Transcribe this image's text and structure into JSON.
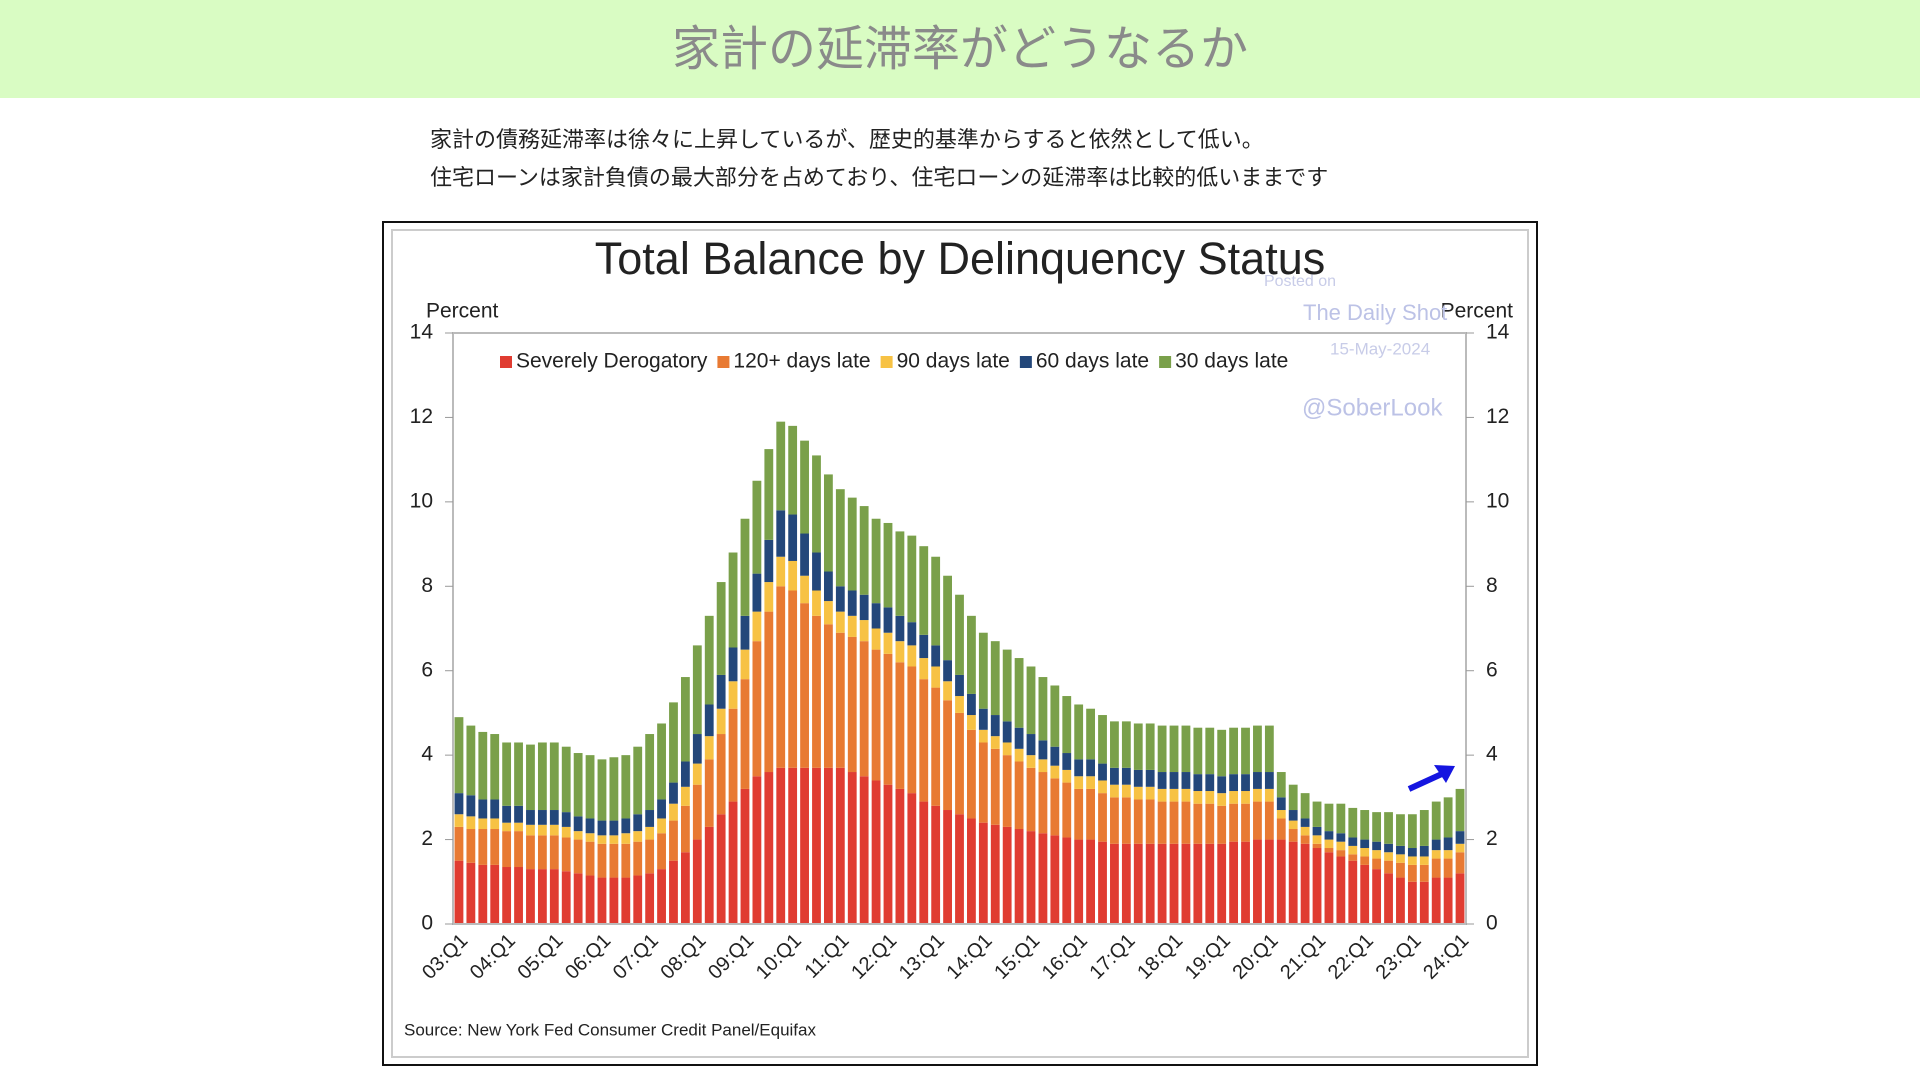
{
  "header": {
    "title": "家計の延滞率がどうなるか"
  },
  "description": [
    "家計の債務延滞率は徐々に上昇しているが、歴史的基準からすると依然として低い。",
    "住宅ローンは家計負債の最大部分を占めており、住宅ローンの延滞率は比較的低いままです"
  ],
  "chart_data": {
    "type": "stacked_bar",
    "title": "Total Balance by Delinquency Status",
    "y_label": "Percent",
    "y2_label": "Percent",
    "source": "Source: New York Fed Consumer Credit Panel/Equifax",
    "watermark": [
      "Posted on",
      "The Daily Shot",
      "15-May-2024",
      "@SoberLook"
    ],
    "legend": "top",
    "ylim": [
      0,
      14
    ],
    "yticks": [
      0,
      2,
      4,
      6,
      8,
      10,
      12,
      14
    ],
    "y2lim": [
      0,
      14
    ],
    "y2ticks": [
      0,
      2,
      4,
      6,
      8,
      10,
      12,
      14
    ],
    "categories": [
      "03:Q1",
      null,
      null,
      null,
      "04:Q1",
      null,
      null,
      null,
      "05:Q1",
      null,
      null,
      null,
      "06:Q1",
      null,
      null,
      null,
      "07:Q1",
      null,
      null,
      null,
      "08:Q1",
      null,
      null,
      null,
      "09:Q1",
      null,
      null,
      null,
      "10:Q1",
      null,
      null,
      null,
      "11:Q1",
      null,
      null,
      null,
      "12:Q1",
      null,
      null,
      null,
      "13:Q1",
      null,
      null,
      null,
      "14:Q1",
      null,
      null,
      null,
      "15:Q1",
      null,
      null,
      null,
      "16:Q1",
      null,
      null,
      null,
      "17:Q1",
      null,
      null,
      null,
      "18:Q1",
      null,
      null,
      null,
      "19:Q1",
      null,
      null,
      null,
      "20:Q1",
      null,
      null,
      null,
      "21:Q1",
      null,
      null,
      null,
      "22:Q1",
      null,
      null,
      null,
      "23:Q1",
      null,
      null,
      null,
      "24:Q1"
    ],
    "series": [
      {
        "name": "Severely Derogatory",
        "color": "#e03c31",
        "values": [
          1.5,
          1.45,
          1.4,
          1.4,
          1.35,
          1.35,
          1.3,
          1.3,
          1.3,
          1.25,
          1.2,
          1.15,
          1.1,
          1.1,
          1.1,
          1.15,
          1.2,
          1.3,
          1.5,
          1.7,
          2.0,
          2.3,
          2.6,
          2.9,
          3.2,
          3.5,
          3.6,
          3.7,
          3.7,
          3.7,
          3.7,
          3.7,
          3.7,
          3.6,
          3.5,
          3.4,
          3.3,
          3.2,
          3.1,
          2.9,
          2.8,
          2.7,
          2.6,
          2.5,
          2.4,
          2.35,
          2.3,
          2.25,
          2.2,
          2.15,
          2.1,
          2.05,
          2.0,
          2.0,
          1.95,
          1.9,
          1.9,
          1.9,
          1.9,
          1.9,
          1.9,
          1.9,
          1.9,
          1.9,
          1.9,
          1.95,
          1.95,
          2.0,
          2.0,
          2.0,
          1.95,
          1.9,
          1.8,
          1.7,
          1.6,
          1.5,
          1.4,
          1.3,
          1.2,
          1.1,
          1.0,
          1.0,
          1.1,
          1.1,
          1.2
        ]
      },
      {
        "name": "120+ days late",
        "color": "#e87a33",
        "values": [
          0.8,
          0.8,
          0.85,
          0.85,
          0.85,
          0.85,
          0.8,
          0.8,
          0.8,
          0.8,
          0.8,
          0.8,
          0.8,
          0.8,
          0.8,
          0.8,
          0.8,
          0.85,
          0.95,
          1.1,
          1.3,
          1.6,
          1.9,
          2.2,
          2.6,
          3.2,
          3.8,
          4.3,
          4.2,
          3.9,
          3.6,
          3.4,
          3.2,
          3.2,
          3.2,
          3.1,
          3.1,
          3.0,
          3.0,
          2.9,
          2.8,
          2.6,
          2.4,
          2.1,
          1.9,
          1.8,
          1.7,
          1.6,
          1.5,
          1.45,
          1.35,
          1.3,
          1.2,
          1.2,
          1.15,
          1.1,
          1.1,
          1.05,
          1.05,
          1.0,
          1.0,
          1.0,
          0.95,
          0.95,
          0.9,
          0.9,
          0.9,
          0.9,
          0.9,
          0.5,
          0.3,
          0.2,
          0.1,
          0.1,
          0.15,
          0.15,
          0.2,
          0.25,
          0.3,
          0.35,
          0.4,
          0.4,
          0.45,
          0.45,
          0.5
        ]
      },
      {
        "name": "90 days late",
        "color": "#f7c244",
        "values": [
          0.3,
          0.3,
          0.25,
          0.25,
          0.2,
          0.2,
          0.25,
          0.25,
          0.25,
          0.25,
          0.2,
          0.2,
          0.2,
          0.2,
          0.25,
          0.25,
          0.3,
          0.35,
          0.4,
          0.45,
          0.5,
          0.55,
          0.6,
          0.65,
          0.7,
          0.7,
          0.7,
          0.7,
          0.7,
          0.65,
          0.6,
          0.55,
          0.5,
          0.5,
          0.5,
          0.5,
          0.5,
          0.5,
          0.5,
          0.5,
          0.5,
          0.45,
          0.4,
          0.35,
          0.3,
          0.3,
          0.3,
          0.3,
          0.3,
          0.3,
          0.3,
          0.3,
          0.3,
          0.3,
          0.3,
          0.3,
          0.3,
          0.3,
          0.3,
          0.3,
          0.3,
          0.3,
          0.3,
          0.3,
          0.3,
          0.3,
          0.3,
          0.3,
          0.3,
          0.2,
          0.2,
          0.2,
          0.2,
          0.2,
          0.2,
          0.2,
          0.2,
          0.2,
          0.2,
          0.2,
          0.2,
          0.2,
          0.2,
          0.2,
          0.2
        ]
      },
      {
        "name": "60 days late",
        "color": "#23477a",
        "values": [
          0.5,
          0.5,
          0.45,
          0.45,
          0.4,
          0.4,
          0.35,
          0.35,
          0.35,
          0.35,
          0.35,
          0.35,
          0.35,
          0.35,
          0.35,
          0.4,
          0.4,
          0.45,
          0.5,
          0.6,
          0.7,
          0.75,
          0.8,
          0.8,
          0.8,
          0.9,
          1.0,
          1.1,
          1.1,
          1.0,
          0.9,
          0.7,
          0.6,
          0.6,
          0.6,
          0.6,
          0.6,
          0.6,
          0.55,
          0.55,
          0.5,
          0.5,
          0.5,
          0.5,
          0.5,
          0.5,
          0.5,
          0.5,
          0.5,
          0.45,
          0.45,
          0.4,
          0.4,
          0.4,
          0.4,
          0.4,
          0.4,
          0.4,
          0.4,
          0.4,
          0.4,
          0.4,
          0.4,
          0.4,
          0.4,
          0.4,
          0.4,
          0.4,
          0.4,
          0.3,
          0.25,
          0.2,
          0.2,
          0.2,
          0.2,
          0.2,
          0.2,
          0.2,
          0.2,
          0.2,
          0.2,
          0.25,
          0.25,
          0.3,
          0.3
        ]
      },
      {
        "name": "30 days late",
        "color": "#7aa04a",
        "values": [
          1.8,
          1.65,
          1.6,
          1.55,
          1.5,
          1.5,
          1.55,
          1.6,
          1.6,
          1.55,
          1.5,
          1.5,
          1.45,
          1.5,
          1.5,
          1.6,
          1.8,
          1.8,
          1.9,
          2.0,
          2.1,
          2.1,
          2.2,
          2.25,
          2.3,
          2.2,
          2.15,
          2.1,
          2.1,
          2.2,
          2.3,
          2.3,
          2.3,
          2.2,
          2.1,
          2.0,
          2.0,
          2.0,
          2.05,
          2.1,
          2.1,
          2.0,
          1.9,
          1.85,
          1.8,
          1.75,
          1.7,
          1.65,
          1.6,
          1.5,
          1.45,
          1.35,
          1.3,
          1.2,
          1.15,
          1.1,
          1.1,
          1.1,
          1.1,
          1.1,
          1.1,
          1.1,
          1.1,
          1.1,
          1.1,
          1.1,
          1.1,
          1.1,
          1.1,
          0.6,
          0.6,
          0.6,
          0.6,
          0.65,
          0.7,
          0.7,
          0.7,
          0.7,
          0.75,
          0.75,
          0.8,
          0.85,
          0.9,
          0.95,
          1.0
        ]
      }
    ]
  }
}
